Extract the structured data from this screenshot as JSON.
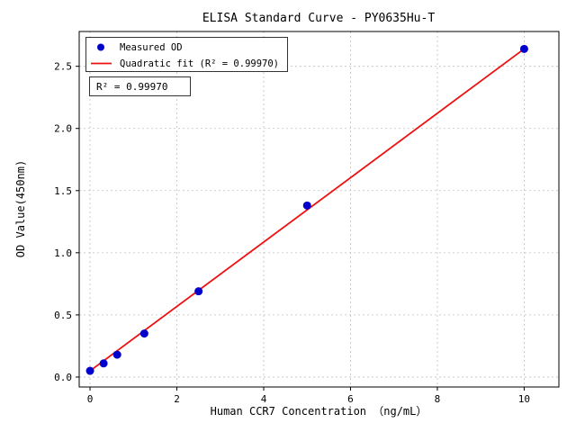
{
  "chart_data": {
    "type": "scatter",
    "title": "ELISA Standard Curve - PY0635Hu-T",
    "xlabel": "Human CCR7 Concentration （ng/mL）",
    "ylabel": "OD Value(450nm)",
    "xlim": [
      -0.25,
      10.8
    ],
    "ylim": [
      -0.08,
      2.78
    ],
    "grid": true,
    "xticks": [
      0,
      2,
      4,
      6,
      8,
      10
    ],
    "xtick_labels": [
      "0",
      "2",
      "4",
      "6",
      "8",
      "10"
    ],
    "yticks": [
      0.0,
      0.5,
      1.0,
      1.5,
      2.0,
      2.5
    ],
    "ytick_labels": [
      "0.0",
      "0.5",
      "1.0",
      "1.5",
      "2.0",
      "2.5"
    ],
    "points": {
      "name": "Measured OD",
      "x": [
        0,
        0.3125,
        0.625,
        1.25,
        2.5,
        5,
        10
      ],
      "y": [
        0.05,
        0.11,
        0.18,
        0.35,
        0.69,
        1.38,
        2.64
      ]
    },
    "fit_line": {
      "name": "Quadratic fit",
      "x": [
        0,
        10
      ],
      "y": [
        0.05,
        2.64
      ]
    },
    "legend_items": [
      {
        "label": "Measured OD",
        "marker": "dot"
      },
      {
        "label": "Quadratic fit (R² = 0.99970)",
        "marker": "line"
      }
    ],
    "legend_position": "upper left",
    "annotation": "R² = 0.99970",
    "r_squared": "0.99970",
    "colors": {
      "points": "#0000cd",
      "fit_line": "#ee1111",
      "grid": "#bfbfbf",
      "axes": "#000000"
    }
  }
}
